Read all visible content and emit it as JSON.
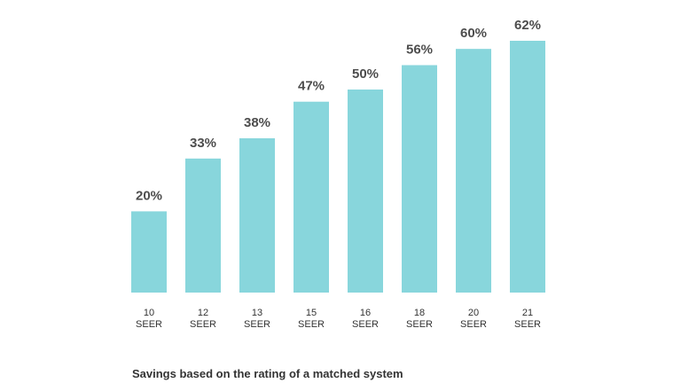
{
  "caption": "Savings based on the rating of a matched system",
  "colors": {
    "bar": "#88d6dc",
    "value_label": "#4d4d4d",
    "tick_label": "#333333"
  },
  "chart_data": {
    "type": "bar",
    "categories": [
      [
        "10",
        "SEER"
      ],
      [
        "12",
        "SEER"
      ],
      [
        "13",
        "SEER"
      ],
      [
        "15",
        "SEER"
      ],
      [
        "16",
        "SEER"
      ],
      [
        "18",
        "SEER"
      ],
      [
        "20",
        "SEER"
      ],
      [
        "21",
        "SEER"
      ]
    ],
    "values": [
      20,
      33,
      38,
      47,
      50,
      56,
      60,
      62
    ],
    "value_labels": [
      "20%",
      "33%",
      "38%",
      "47%",
      "50%",
      "56%",
      "60%",
      "62%"
    ],
    "ylim": [
      0,
      62
    ],
    "grid": false,
    "legend": "none"
  }
}
